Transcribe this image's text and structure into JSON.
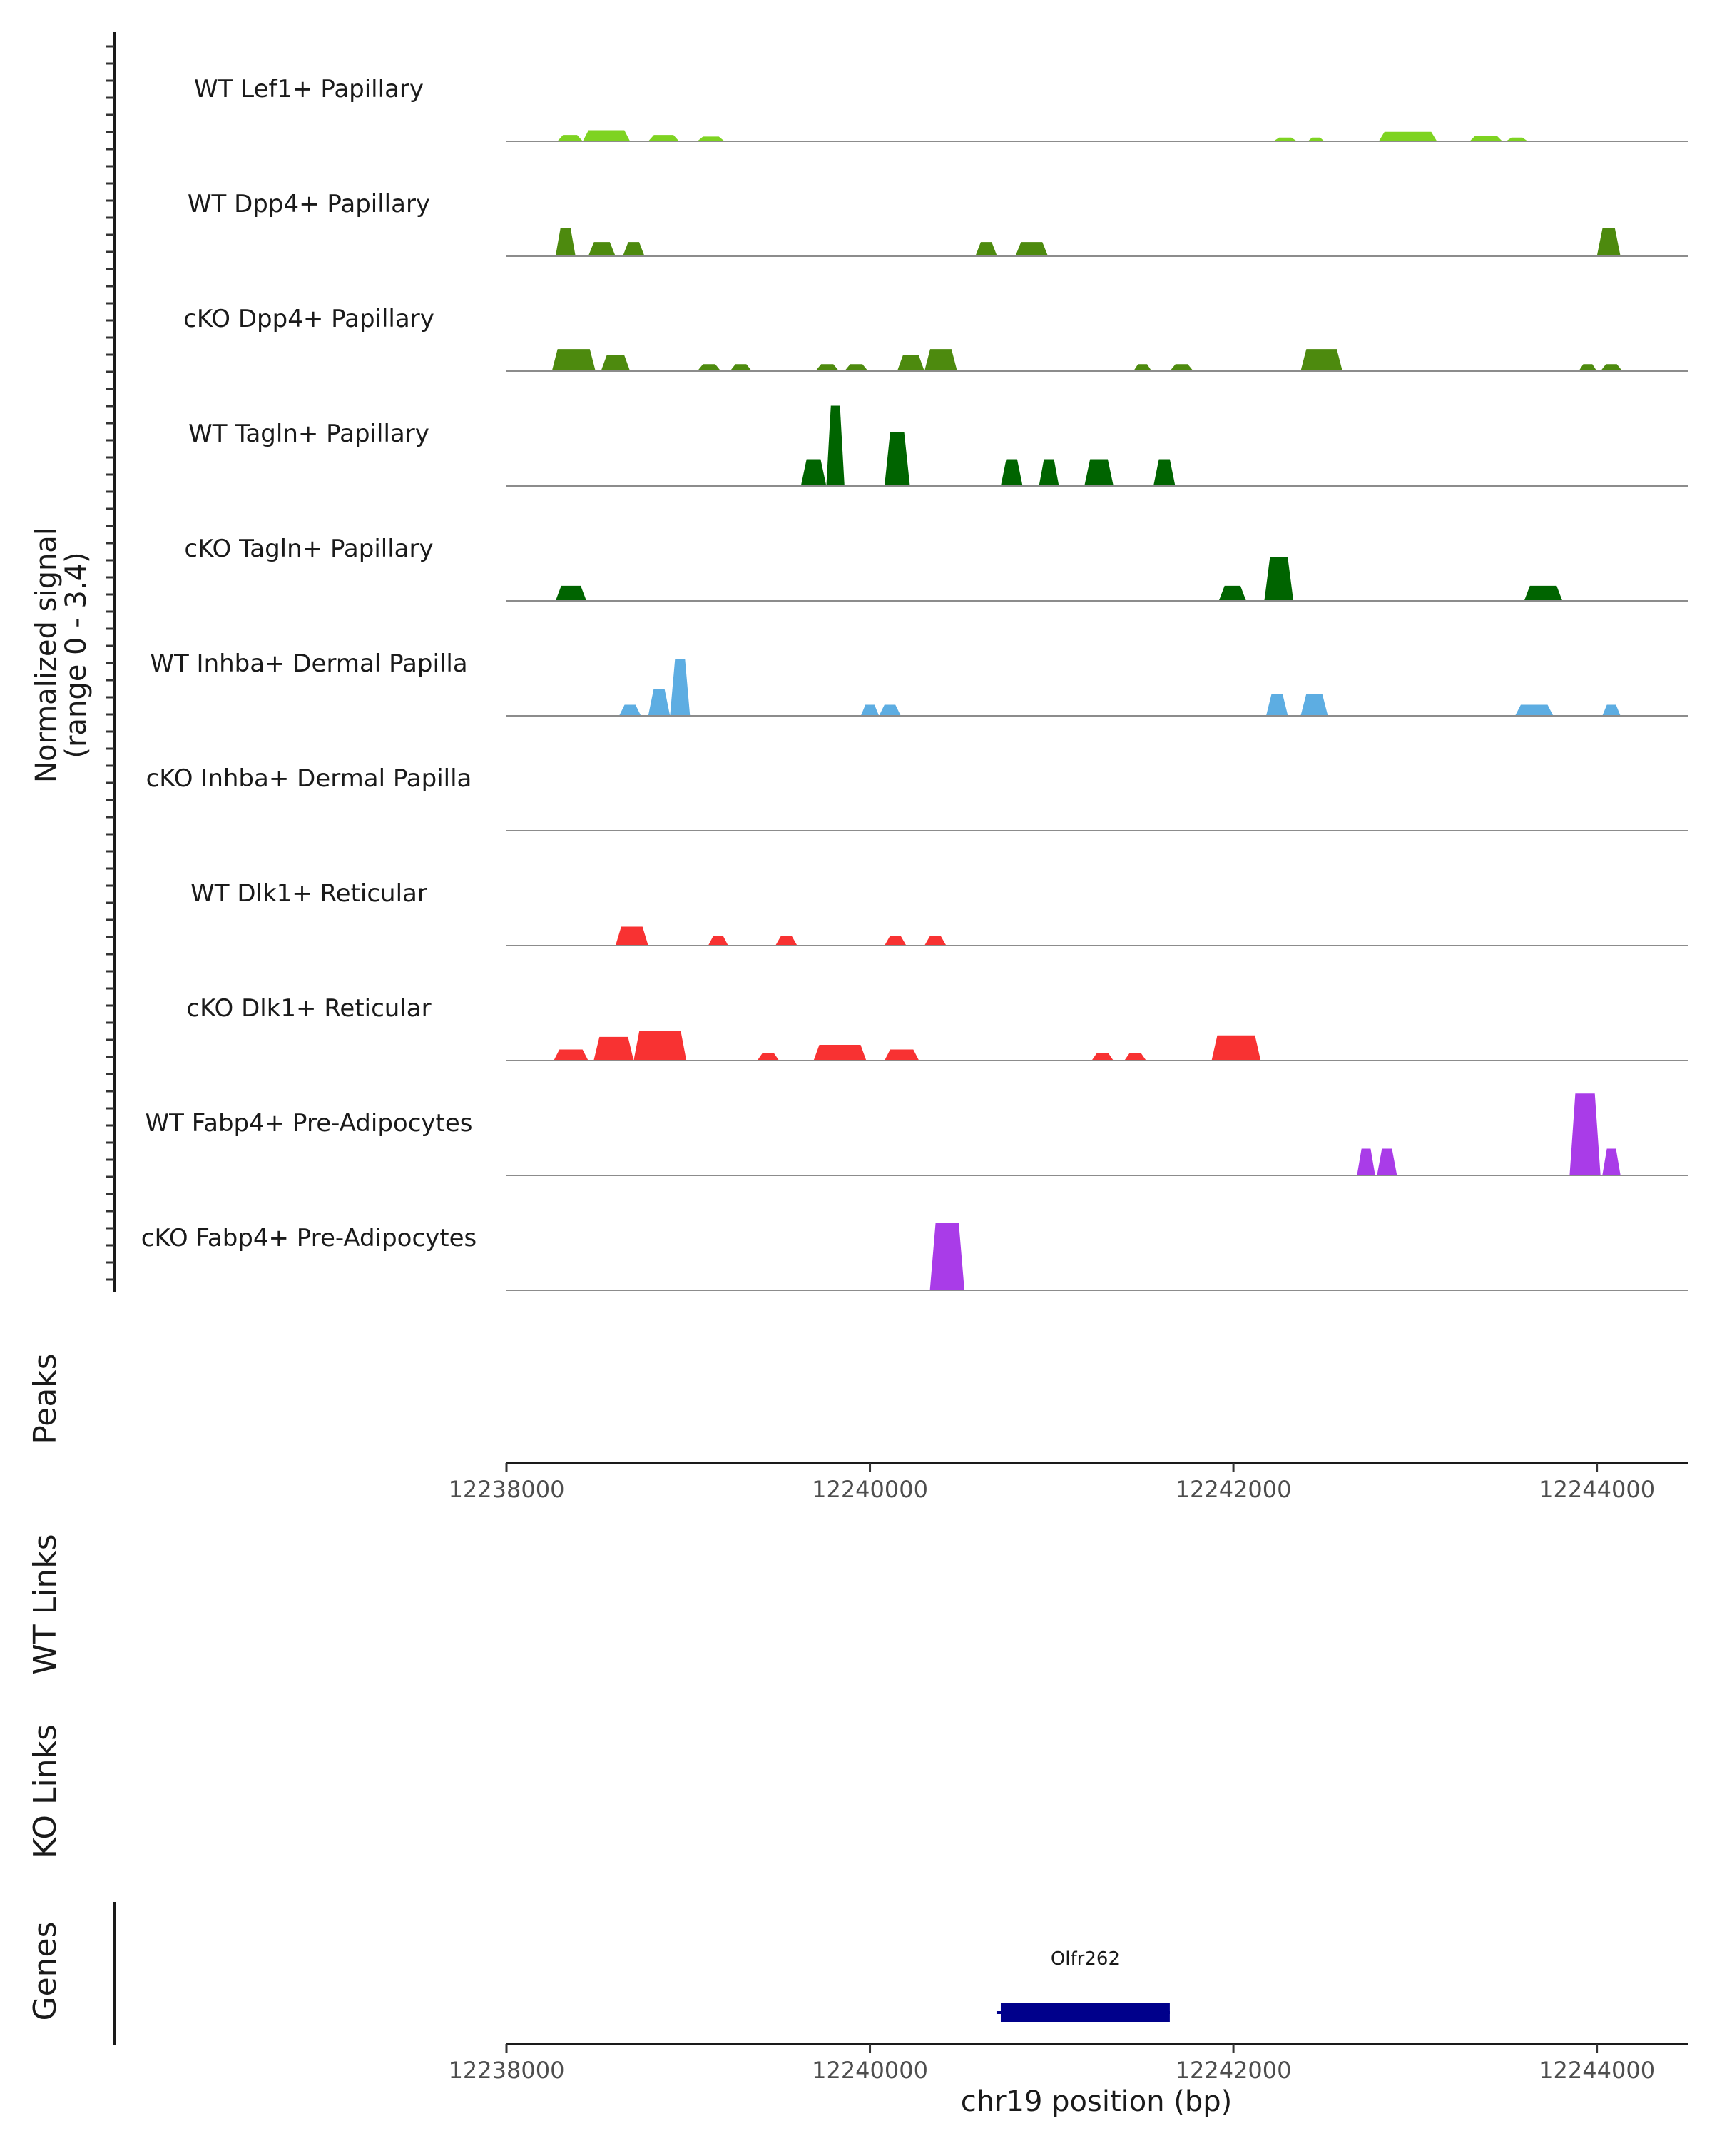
{
  "chart_data": {
    "type": "area",
    "chromosome": "chr19",
    "xlim": [
      12238000,
      12244500
    ],
    "x_ticks": [
      12238000,
      12240000,
      12242000,
      12244000
    ],
    "x_tick_labels": [
      "12238000",
      "12240000",
      "12242000",
      "12244000"
    ],
    "xlabel": "chr19 position (bp)",
    "ylabel_line1": "Normalized signal",
    "ylabel_line2": "(range 0 - 3.4)",
    "ylim": [
      0,
      3.4
    ],
    "tracks": [
      {
        "name": "WT Lef1+ Papillary",
        "color": "#7ED321",
        "peaks": [
          {
            "start": 12238280,
            "end": 12238420,
            "height": 0.2
          },
          {
            "start": 12238420,
            "end": 12238680,
            "height": 0.35
          },
          {
            "start": 12238780,
            "end": 12238950,
            "height": 0.2
          },
          {
            "start": 12239050,
            "end": 12239200,
            "height": 0.15
          },
          {
            "start": 12242220,
            "end": 12242350,
            "height": 0.12
          },
          {
            "start": 12242410,
            "end": 12242500,
            "height": 0.12
          },
          {
            "start": 12242800,
            "end": 12243120,
            "height": 0.3
          },
          {
            "start": 12243300,
            "end": 12243480,
            "height": 0.18
          },
          {
            "start": 12243500,
            "end": 12243620,
            "height": 0.12
          }
        ]
      },
      {
        "name": "WT Dpp4+ Papillary",
        "color": "#4D8A0E",
        "peaks": [
          {
            "start": 12238270,
            "end": 12238380,
            "height": 0.9
          },
          {
            "start": 12238450,
            "end": 12238600,
            "height": 0.45
          },
          {
            "start": 12238640,
            "end": 12238760,
            "height": 0.45
          },
          {
            "start": 12240580,
            "end": 12240700,
            "height": 0.45
          },
          {
            "start": 12240800,
            "end": 12240980,
            "height": 0.45
          },
          {
            "start": 12244000,
            "end": 12244130,
            "height": 0.9
          }
        ]
      },
      {
        "name": "cKO Dpp4+ Papillary",
        "color": "#4D8A0E",
        "peaks": [
          {
            "start": 12238250,
            "end": 12238490,
            "height": 0.7
          },
          {
            "start": 12238520,
            "end": 12238680,
            "height": 0.5
          },
          {
            "start": 12239050,
            "end": 12239180,
            "height": 0.22
          },
          {
            "start": 12239230,
            "end": 12239350,
            "height": 0.22
          },
          {
            "start": 12239700,
            "end": 12239830,
            "height": 0.22
          },
          {
            "start": 12239860,
            "end": 12239990,
            "height": 0.22
          },
          {
            "start": 12240150,
            "end": 12240300,
            "height": 0.5
          },
          {
            "start": 12240300,
            "end": 12240480,
            "height": 0.7
          },
          {
            "start": 12241450,
            "end": 12241550,
            "height": 0.22
          },
          {
            "start": 12241650,
            "end": 12241780,
            "height": 0.22
          },
          {
            "start": 12242370,
            "end": 12242600,
            "height": 0.7
          },
          {
            "start": 12243900,
            "end": 12244000,
            "height": 0.22
          },
          {
            "start": 12244020,
            "end": 12244140,
            "height": 0.22
          }
        ]
      },
      {
        "name": "WT Tagln+ Papillary",
        "color": "#006400",
        "peaks": [
          {
            "start": 12239620,
            "end": 12239760,
            "height": 0.85
          },
          {
            "start": 12239760,
            "end": 12239860,
            "height": 2.55
          },
          {
            "start": 12240080,
            "end": 12240220,
            "height": 1.7
          },
          {
            "start": 12240720,
            "end": 12240840,
            "height": 0.85
          },
          {
            "start": 12240930,
            "end": 12241040,
            "height": 0.85
          },
          {
            "start": 12241180,
            "end": 12241340,
            "height": 0.85
          },
          {
            "start": 12241560,
            "end": 12241680,
            "height": 0.85
          }
        ]
      },
      {
        "name": "cKO Tagln+ Papillary",
        "color": "#006400",
        "peaks": [
          {
            "start": 12238270,
            "end": 12238440,
            "height": 0.48
          },
          {
            "start": 12241920,
            "end": 12242070,
            "height": 0.48
          },
          {
            "start": 12242170,
            "end": 12242330,
            "height": 1.4
          },
          {
            "start": 12243600,
            "end": 12243810,
            "height": 0.48
          }
        ]
      },
      {
        "name": "WT Inhba+ Dermal Papilla",
        "color": "#5DADE2",
        "peaks": [
          {
            "start": 12238620,
            "end": 12238740,
            "height": 0.35
          },
          {
            "start": 12238780,
            "end": 12238900,
            "height": 0.85
          },
          {
            "start": 12238900,
            "end": 12239010,
            "height": 1.8
          },
          {
            "start": 12239950,
            "end": 12240050,
            "height": 0.35
          },
          {
            "start": 12240050,
            "end": 12240170,
            "height": 0.35
          },
          {
            "start": 12242180,
            "end": 12242300,
            "height": 0.7
          },
          {
            "start": 12242370,
            "end": 12242520,
            "height": 0.7
          },
          {
            "start": 12243550,
            "end": 12243760,
            "height": 0.35
          },
          {
            "start": 12244030,
            "end": 12244130,
            "height": 0.35
          }
        ]
      },
      {
        "name": "cKO Inhba+ Dermal Papilla",
        "color": "#5DADE2",
        "peaks": []
      },
      {
        "name": "WT Dlk1+ Reticular",
        "color": "#F83232",
        "peaks": [
          {
            "start": 12238600,
            "end": 12238780,
            "height": 0.6
          },
          {
            "start": 12239110,
            "end": 12239220,
            "height": 0.3
          },
          {
            "start": 12239480,
            "end": 12239600,
            "height": 0.3
          },
          {
            "start": 12240080,
            "end": 12240200,
            "height": 0.3
          },
          {
            "start": 12240300,
            "end": 12240420,
            "height": 0.3
          }
        ]
      },
      {
        "name": "cKO Dlk1+ Reticular",
        "color": "#F83232",
        "peaks": [
          {
            "start": 12238260,
            "end": 12238450,
            "height": 0.35
          },
          {
            "start": 12238480,
            "end": 12238700,
            "height": 0.75
          },
          {
            "start": 12238700,
            "end": 12238990,
            "height": 0.95
          },
          {
            "start": 12239380,
            "end": 12239500,
            "height": 0.25
          },
          {
            "start": 12239690,
            "end": 12239980,
            "height": 0.5
          },
          {
            "start": 12240080,
            "end": 12240270,
            "height": 0.35
          },
          {
            "start": 12241220,
            "end": 12241340,
            "height": 0.25
          },
          {
            "start": 12241400,
            "end": 12241520,
            "height": 0.25
          },
          {
            "start": 12241880,
            "end": 12242150,
            "height": 0.8
          }
        ]
      },
      {
        "name": "WT Fabp4+ Pre-Adipocytes",
        "color": "#A93CE8",
        "peaks": [
          {
            "start": 12242680,
            "end": 12242780,
            "height": 0.85
          },
          {
            "start": 12242790,
            "end": 12242900,
            "height": 0.85
          },
          {
            "start": 12243850,
            "end": 12244020,
            "height": 2.6
          },
          {
            "start": 12244030,
            "end": 12244130,
            "height": 0.85
          }
        ]
      },
      {
        "name": "cKO Fabp4+ Pre-Adipocytes",
        "color": "#A93CE8",
        "peaks": [
          {
            "start": 12240330,
            "end": 12240520,
            "height": 2.15
          }
        ]
      }
    ],
    "panels": {
      "peaks_label": "Peaks",
      "wt_links_label": "WT Links",
      "ko_links_label": "KO Links",
      "genes_label": "Genes"
    },
    "genes": [
      {
        "name": "Olfr262",
        "start": 12240720,
        "end": 12241650,
        "strand": "+",
        "color": "#00008B"
      }
    ]
  }
}
